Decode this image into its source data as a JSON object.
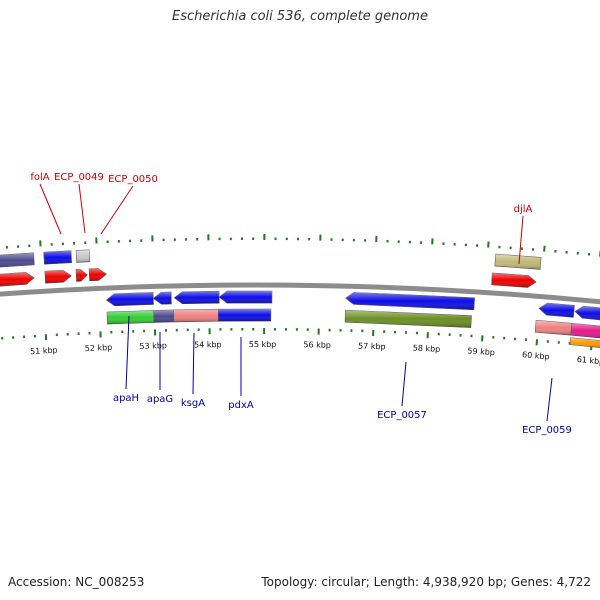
{
  "title": "Escherichia coli 536, complete genome",
  "footer": {
    "accession": "Accession: NC_008253",
    "summary": "Topology: circular; Length: 4,938,920 bp; Genes: 4,722"
  },
  "colors": {
    "backbone": "#8c8c8c",
    "tick": "#1f7a1f",
    "label_top": "#cc0000",
    "label_bottom": "#0000aa",
    "scale_text": "#111111"
  },
  "scale_labels": [
    {
      "kbp": 51,
      "text": "51 kbp"
    },
    {
      "kbp": 52,
      "text": "52 kbp"
    },
    {
      "kbp": 53,
      "text": "53 kbp"
    },
    {
      "kbp": 54,
      "text": "54 kbp"
    },
    {
      "kbp": 55,
      "text": "55 kbp"
    },
    {
      "kbp": 56,
      "text": "56 kbp"
    },
    {
      "kbp": 57,
      "text": "57 kbp"
    },
    {
      "kbp": 58,
      "text": "58 kbp"
    },
    {
      "kbp": 59,
      "text": "59 kbp"
    },
    {
      "kbp": 60,
      "text": "60 kbp"
    },
    {
      "kbp": 61,
      "text": "61 kbp"
    }
  ],
  "features": [
    {
      "name": "",
      "strand": "+",
      "row": 1,
      "dir": "none",
      "color": "#4b4a8c"
    },
    {
      "name": "",
      "strand": "+",
      "row": 1,
      "dir": "none",
      "color": "#0d0de6"
    },
    {
      "name": "",
      "strand": "+",
      "row": 1,
      "dir": "none",
      "color": "#c8c8c8"
    },
    {
      "name": "",
      "strand": "+",
      "row": 2,
      "dir": "right",
      "color": "#ee0000"
    },
    {
      "name": "",
      "strand": "+",
      "row": 2,
      "dir": "right",
      "color": "#ee0000"
    },
    {
      "name": "",
      "strand": "+",
      "row": 2,
      "dir": "right",
      "color": "#ee0000"
    },
    {
      "name": "",
      "strand": "+",
      "row": 2,
      "dir": "right",
      "color": "#ee0000"
    },
    {
      "name": "",
      "strand": "+",
      "row": 1,
      "dir": "none",
      "color": "#c2b878"
    },
    {
      "name": "",
      "strand": "+",
      "row": 2,
      "dir": "right",
      "color": "#ee0000"
    },
    {
      "name": "",
      "strand": "-",
      "row": 1,
      "dir": "left",
      "color": "#0d0de6"
    },
    {
      "name": "",
      "strand": "-",
      "row": 1,
      "dir": "left",
      "color": "#0d0de6"
    },
    {
      "name": "",
      "strand": "-",
      "row": 1,
      "dir": "left",
      "color": "#0d0de6"
    },
    {
      "name": "",
      "strand": "-",
      "row": 1,
      "dir": "left",
      "color": "#0d0de6"
    },
    {
      "name": "",
      "strand": "-",
      "row": 2,
      "dir": "none",
      "color": "#33cc33"
    },
    {
      "name": "",
      "strand": "-",
      "row": 2,
      "dir": "none",
      "color": "#4b4a8c"
    },
    {
      "name": "",
      "strand": "-",
      "row": 2,
      "dir": "none",
      "color": "#f08080"
    },
    {
      "name": "",
      "strand": "-",
      "row": 2,
      "dir": "none",
      "color": "#0d0de6"
    },
    {
      "name": "",
      "strand": "-",
      "row": 1,
      "dir": "left",
      "color": "#0d0de6"
    },
    {
      "name": "",
      "strand": "-",
      "row": 2,
      "dir": "none",
      "color": "#6b8e23"
    },
    {
      "name": "",
      "strand": "-",
      "row": 1,
      "dir": "left",
      "color": "#0d0de6"
    },
    {
      "name": "",
      "strand": "-",
      "row": 1,
      "dir": "left",
      "color": "#0d0de6"
    },
    {
      "name": "",
      "strand": "-",
      "row": 2,
      "dir": "none",
      "color": "#f08080"
    },
    {
      "name": "",
      "strand": "-",
      "row": 2,
      "dir": "none",
      "color": "#e6198c"
    },
    {
      "name": "",
      "strand": "-",
      "row": 3,
      "dir": "none",
      "color": "#ff9900"
    }
  ],
  "gene_labels": [
    {
      "text": "folA",
      "side": "top"
    },
    {
      "text": "ECP_0049",
      "side": "top"
    },
    {
      "text": "ECP_0050",
      "side": "top"
    },
    {
      "text": "djlA",
      "side": "top"
    },
    {
      "text": "apaH",
      "side": "bottom"
    },
    {
      "text": "apaG",
      "side": "bottom"
    },
    {
      "text": "ksgA",
      "side": "bottom"
    },
    {
      "text": "pdxA",
      "side": "bottom"
    },
    {
      "text": "ECP_0057",
      "side": "bottom"
    },
    {
      "text": "ECP_0059",
      "side": "bottom"
    }
  ]
}
